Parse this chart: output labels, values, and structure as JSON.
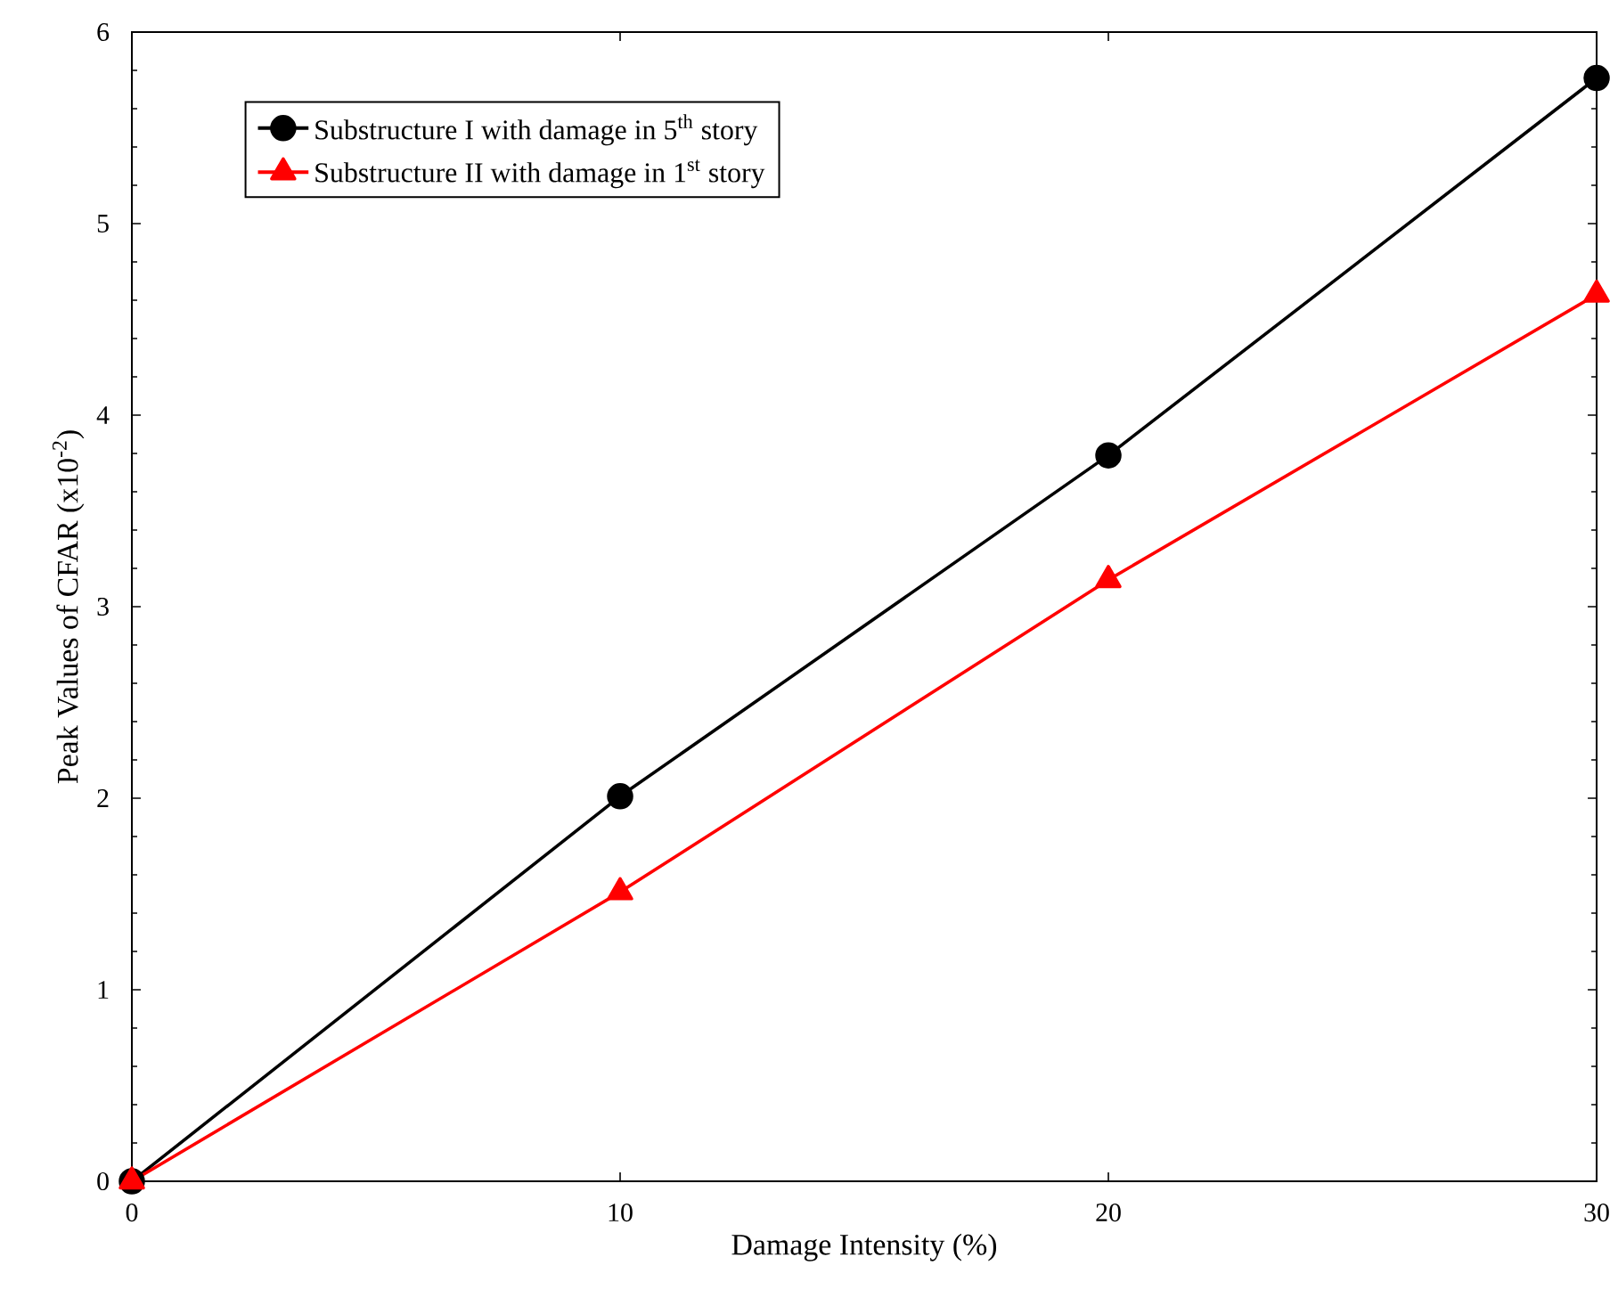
{
  "chart_data": {
    "type": "line",
    "xlabel": "Damage Intensity (%)",
    "ylabel": "Peak Values of CFAR (x10$^{-2}$)",
    "x": [
      0,
      10,
      20,
      30
    ],
    "series": [
      {
        "name": "Substructure I with damage in 5$^{th}$ story",
        "color": "#000000",
        "marker": "circle",
        "values": [
          0,
          2.01,
          3.79,
          5.76
        ]
      },
      {
        "name": "Substructure II with damage in 1$^{st}$ story",
        "color": "#ff0000",
        "marker": "triangle",
        "values": [
          0,
          1.51,
          3.14,
          4.63
        ]
      }
    ],
    "xlim": [
      0,
      30
    ],
    "ylim": [
      0,
      6
    ],
    "xticks": [
      0,
      10,
      20,
      30
    ],
    "yticks": [
      0,
      1,
      2,
      3,
      4,
      5,
      6
    ],
    "legend": "top left",
    "grid": false,
    "line_style": "solid"
  }
}
